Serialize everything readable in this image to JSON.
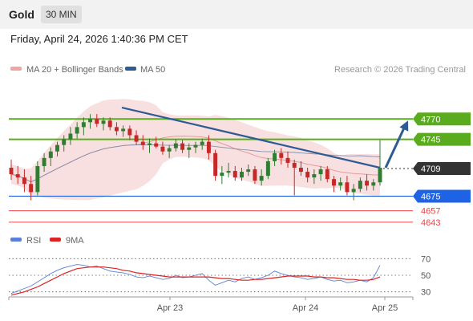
{
  "header": {
    "instrument": "Gold",
    "timeframe": "30 MIN",
    "timestamp": "Friday, April 24, 2026 1:40:36 PM CET"
  },
  "legend": {
    "bb_label": "MA 20 + Bollinger Bands",
    "ma50_label": "MA 50",
    "copyright": "Research © 2026 Trading Central",
    "rsi_label": "RSI",
    "ma9_label": "9MA"
  },
  "colors": {
    "bull": "#2e7d32",
    "bear": "#c62828",
    "ma50": "#2f5b94",
    "band": "#f4c7c7",
    "target": "#5aab1e",
    "support": "#1e63e6",
    "red_level": "#ee4444",
    "current": "#333333",
    "rsi": "#5b7ed6",
    "ma9": "#dd2222"
  },
  "chart_data": [
    {
      "type": "candlestick",
      "instrument": "Gold",
      "timeframe": "30 MIN",
      "x_tick_labels": [
        "Apr 23",
        "Apr 24",
        "Apr 25"
      ],
      "ylim": [
        4630,
        4790
      ],
      "current_price": 4709,
      "levels": [
        {
          "label": "4770",
          "value": 4770,
          "kind": "target"
        },
        {
          "label": "4745",
          "value": 4745,
          "kind": "target"
        },
        {
          "label": "4709",
          "value": 4709,
          "kind": "current"
        },
        {
          "label": "4675",
          "value": 4675,
          "kind": "support"
        },
        {
          "label": "4657",
          "value": 4657,
          "kind": "level"
        },
        {
          "label": "4643",
          "value": 4643,
          "kind": "level"
        }
      ],
      "trendline": {
        "from": 4784,
        "to": 4710
      },
      "forecast": {
        "from": 4710,
        "to": 4768
      },
      "ohlc": [
        [
          4710,
          4720,
          4695,
          4702
        ],
        [
          4702,
          4712,
          4690,
          4698
        ],
        [
          4698,
          4708,
          4680,
          4690
        ],
        [
          4690,
          4700,
          4670,
          4680
        ],
        [
          4680,
          4718,
          4676,
          4712
        ],
        [
          4712,
          4728,
          4705,
          4722
        ],
        [
          4722,
          4735,
          4712,
          4730
        ],
        [
          4730,
          4742,
          4724,
          4738
        ],
        [
          4738,
          4750,
          4730,
          4745
        ],
        [
          4745,
          4760,
          4738,
          4752
        ],
        [
          4752,
          4766,
          4746,
          4760
        ],
        [
          4760,
          4772,
          4750,
          4766
        ],
        [
          4766,
          4776,
          4758,
          4770
        ],
        [
          4770,
          4776,
          4760,
          4764
        ],
        [
          4764,
          4772,
          4756,
          4768
        ],
        [
          4768,
          4772,
          4756,
          4760
        ],
        [
          4760,
          4766,
          4750,
          4755
        ],
        [
          4755,
          4762,
          4748,
          4758
        ],
        [
          4758,
          4762,
          4744,
          4750
        ],
        [
          4750,
          4756,
          4738,
          4742
        ],
        [
          4742,
          4750,
          4732,
          4738
        ],
        [
          4738,
          4746,
          4728,
          4740
        ],
        [
          4740,
          4748,
          4734,
          4736
        ],
        [
          4736,
          4742,
          4726,
          4730
        ],
        [
          4730,
          4738,
          4722,
          4734
        ],
        [
          4734,
          4745,
          4730,
          4740
        ],
        [
          4740,
          4744,
          4728,
          4732
        ],
        [
          4732,
          4740,
          4722,
          4735
        ],
        [
          4735,
          4742,
          4728,
          4738
        ],
        [
          4738,
          4746,
          4732,
          4742
        ],
        [
          4742,
          4750,
          4720,
          4728
        ],
        [
          4728,
          4732,
          4694,
          4700
        ],
        [
          4700,
          4712,
          4690,
          4704
        ],
        [
          4704,
          4716,
          4698,
          4706
        ],
        [
          4706,
          4712,
          4694,
          4698
        ],
        [
          4698,
          4710,
          4694,
          4705
        ],
        [
          4705,
          4714,
          4700,
          4708
        ],
        [
          4708,
          4712,
          4690,
          4694
        ],
        [
          4694,
          4708,
          4688,
          4700
        ],
        [
          4700,
          4722,
          4696,
          4718
        ],
        [
          4718,
          4732,
          4712,
          4728
        ],
        [
          4728,
          4734,
          4714,
          4722
        ],
        [
          4722,
          4730,
          4710,
          4716
        ],
        [
          4716,
          4720,
          4676,
          4710
        ],
        [
          4710,
          4718,
          4700,
          4705
        ],
        [
          4705,
          4710,
          4692,
          4698
        ],
        [
          4698,
          4708,
          4690,
          4702
        ],
        [
          4702,
          4712,
          4694,
          4708
        ],
        [
          4708,
          4712,
          4692,
          4696
        ],
        [
          4696,
          4700,
          4680,
          4688
        ],
        [
          4688,
          4698,
          4682,
          4692
        ],
        [
          4692,
          4700,
          4676,
          4680
        ],
        [
          4680,
          4690,
          4670,
          4684
        ],
        [
          4684,
          4698,
          4680,
          4694
        ],
        [
          4694,
          4702,
          4682,
          4688
        ],
        [
          4688,
          4696,
          4682,
          4692
        ],
        [
          4692,
          4744,
          4688,
          4710
        ]
      ]
    },
    {
      "type": "line",
      "title": "RSI",
      "ylim": [
        20,
        80
      ],
      "y_tick_labels": [
        "70",
        "50",
        "30"
      ],
      "series": [
        {
          "name": "RSI",
          "values": [
            28,
            31,
            34,
            37,
            42,
            47,
            52,
            56,
            59,
            61,
            63,
            62,
            60,
            61,
            58,
            55,
            54,
            53,
            51,
            48,
            47,
            49,
            47,
            45,
            46,
            50,
            47,
            48,
            50,
            52,
            44,
            38,
            41,
            44,
            42,
            46,
            48,
            45,
            47,
            50,
            55,
            52,
            50,
            48,
            47,
            45,
            46,
            48,
            45,
            43,
            44,
            41,
            42,
            44,
            42,
            47,
            62
          ]
        },
        {
          "name": "9MA",
          "values": [
            26,
            28,
            30,
            33,
            36,
            40,
            44,
            48,
            52,
            55,
            58,
            59,
            60,
            60,
            60,
            59,
            58,
            56,
            55,
            53,
            52,
            51,
            50,
            49,
            48,
            48,
            48,
            48,
            48,
            48,
            48,
            47,
            46,
            46,
            45,
            44,
            44,
            45,
            45,
            46,
            47,
            48,
            49,
            49,
            49,
            49,
            48,
            48,
            47,
            47,
            46,
            45,
            45,
            44,
            44,
            45,
            48
          ]
        }
      ]
    }
  ]
}
